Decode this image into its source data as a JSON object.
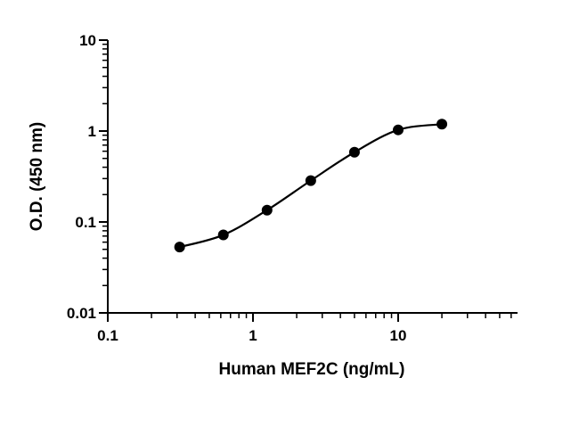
{
  "chart_data": {
    "type": "scatter",
    "xlabel": "Human MEF2C (ng/mL)",
    "ylabel": "O.D. (450 nm)",
    "xscale": "log",
    "yscale": "log",
    "xlim": [
      0.1,
      60
    ],
    "ylim": [
      0.01,
      10
    ],
    "x_ticks": [
      0.1,
      1,
      10
    ],
    "x_tick_labels": [
      "0.1",
      "1",
      "10"
    ],
    "y_ticks": [
      0.01,
      0.1,
      1,
      10
    ],
    "y_tick_labels": [
      "0.01",
      "0.1",
      "1",
      "10"
    ],
    "grid": false,
    "legend": "none",
    "points": {
      "x": [
        0.3125,
        0.625,
        1.25,
        2.5,
        5,
        10,
        20
      ],
      "y": [
        0.053,
        0.072,
        0.135,
        0.285,
        0.585,
        1.03,
        1.19
      ]
    },
    "fit_curve": true
  }
}
